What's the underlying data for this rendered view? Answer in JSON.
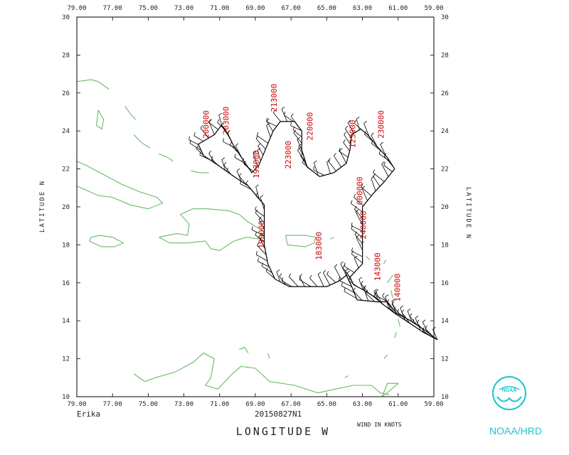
{
  "storm_name": "Erika",
  "flight_id": "20150827N1",
  "x_axis_title": "LONGITUDE   W",
  "y_axis_title": "LATITUDE  N",
  "wind_units": "WIND IN KNOTS",
  "agency": "NOAA/HRD",
  "logo_text": "NOAA",
  "map": {
    "lon_range": [
      -79,
      -59
    ],
    "lat_range": [
      10,
      30
    ],
    "lon_ticks": [
      "79.00",
      "77.00",
      "75.00",
      "73.00",
      "71.00",
      "69.00",
      "67.00",
      "65.00",
      "63.00",
      "61.00",
      "59.00"
    ],
    "lat_ticks": [
      "10",
      "12",
      "14",
      "16",
      "18",
      "20",
      "22",
      "24",
      "26",
      "28",
      "30"
    ],
    "track_color": "#000000",
    "coast_color": "#66bb66",
    "label_color": "#cc0000"
  },
  "track": [
    [
      -58.8,
      13.0
    ],
    [
      -59.6,
      13.4
    ],
    [
      -60.4,
      13.9
    ],
    [
      -61.2,
      14.4
    ],
    [
      -61.9,
      14.9
    ],
    [
      -62.4,
      15.3
    ],
    [
      -62.9,
      15.6
    ],
    [
      -63.5,
      15.9
    ],
    [
      -63.7,
      16.3
    ],
    [
      -63.0,
      17.0
    ],
    [
      -63.0,
      18.0
    ],
    [
      -63.0,
      19.0
    ],
    [
      -63.0,
      20.0
    ],
    [
      -62.4,
      20.7
    ],
    [
      -61.8,
      21.3
    ],
    [
      -61.2,
      22.0
    ],
    [
      -61.6,
      22.6
    ],
    [
      -62.2,
      23.2
    ],
    [
      -62.7,
      23.8
    ],
    [
      -63.1,
      24.1
    ],
    [
      -63.6,
      23.8
    ],
    [
      -63.7,
      23.0
    ],
    [
      -63.9,
      22.3
    ],
    [
      -64.6,
      21.8
    ],
    [
      -65.4,
      21.6
    ],
    [
      -66.1,
      22.1
    ],
    [
      -66.4,
      23.0
    ],
    [
      -66.4,
      24.0
    ],
    [
      -66.8,
      24.5
    ],
    [
      -67.6,
      24.5
    ],
    [
      -68.0,
      24.0
    ],
    [
      -68.4,
      23.1
    ],
    [
      -68.8,
      22.2
    ],
    [
      -69.2,
      21.8
    ],
    [
      -69.7,
      22.5
    ],
    [
      -70.2,
      23.2
    ],
    [
      -70.7,
      24.1
    ],
    [
      -70.9,
      24.3
    ],
    [
      -71.3,
      23.8
    ],
    [
      -72.2,
      23.3
    ],
    [
      -71.9,
      22.7
    ],
    [
      -71.1,
      22.2
    ],
    [
      -70.2,
      21.6
    ],
    [
      -69.4,
      21.1
    ],
    [
      -68.5,
      20.1
    ],
    [
      -68.5,
      19.0
    ],
    [
      -68.5,
      18.0
    ],
    [
      -68.3,
      17.0
    ],
    [
      -67.9,
      16.2
    ],
    [
      -67.1,
      15.8
    ],
    [
      -66.0,
      15.8
    ],
    [
      -65.0,
      15.8
    ],
    [
      -64.3,
      16.1
    ],
    [
      -63.9,
      16.4
    ],
    [
      -63.6,
      15.8
    ],
    [
      -63.3,
      15.1
    ],
    [
      -62.2,
      15.0
    ],
    [
      -61.6,
      15.0
    ],
    [
      -61.1,
      14.4
    ],
    [
      -60.3,
      14.0
    ],
    [
      -59.5,
      13.5
    ],
    [
      -58.8,
      13.0
    ]
  ],
  "time_labels": [
    {
      "text": "200000",
      "lon": -71.6,
      "lat": 23.6
    },
    {
      "text": "203000",
      "lon": -70.5,
      "lat": 23.8
    },
    {
      "text": "213000",
      "lon": -67.8,
      "lat": 25.0
    },
    {
      "text": "220000",
      "lon": -65.8,
      "lat": 23.5
    },
    {
      "text": "223000",
      "lon": -67.0,
      "lat": 22.0
    },
    {
      "text": "193000",
      "lon": -68.8,
      "lat": 21.5
    },
    {
      "text": "230000",
      "lon": -61.8,
      "lat": 23.6
    },
    {
      "text": "123000",
      "lon": -63.4,
      "lat": 23.1
    },
    {
      "text": "000000",
      "lon": -63.0,
      "lat": 20.1
    },
    {
      "text": "190000",
      "lon": -68.5,
      "lat": 17.8
    },
    {
      "text": "183000",
      "lon": -65.3,
      "lat": 17.2
    },
    {
      "text": "240000",
      "lon": -62.8,
      "lat": 18.3
    },
    {
      "text": "143000",
      "lon": -62.0,
      "lat": 16.1
    },
    {
      "text": "140000",
      "lon": -60.9,
      "lat": 15.0
    }
  ],
  "coastlines": [
    [
      [
        -79.0,
        21.1
      ],
      [
        -77.8,
        20.6
      ],
      [
        -77.0,
        20.5
      ],
      [
        -76.0,
        20.1
      ],
      [
        -75.0,
        19.9
      ],
      [
        -74.2,
        20.2
      ],
      [
        -74.5,
        20.5
      ],
      [
        -75.5,
        20.8
      ],
      [
        -76.5,
        21.2
      ],
      [
        -77.5,
        21.7
      ],
      [
        -78.5,
        22.2
      ],
      [
        -79.0,
        22.4
      ]
    ],
    [
      [
        -78.2,
        18.4
      ],
      [
        -77.7,
        18.5
      ],
      [
        -77.0,
        18.4
      ],
      [
        -76.4,
        18.1
      ],
      [
        -76.9,
        17.9
      ],
      [
        -77.6,
        17.9
      ],
      [
        -78.3,
        18.2
      ],
      [
        -78.2,
        18.4
      ]
    ],
    [
      [
        -74.4,
        18.4
      ],
      [
        -73.4,
        18.6
      ],
      [
        -72.8,
        18.5
      ],
      [
        -72.7,
        19.1
      ],
      [
        -73.2,
        19.6
      ],
      [
        -72.5,
        19.9
      ],
      [
        -71.7,
        19.9
      ],
      [
        -70.5,
        19.8
      ],
      [
        -69.9,
        19.6
      ],
      [
        -69.4,
        19.2
      ],
      [
        -68.5,
        18.7
      ],
      [
        -68.7,
        18.3
      ],
      [
        -69.5,
        18.4
      ],
      [
        -70.2,
        18.2
      ],
      [
        -71.0,
        17.7
      ],
      [
        -71.5,
        17.8
      ],
      [
        -71.8,
        18.2
      ],
      [
        -72.8,
        18.1
      ],
      [
        -73.8,
        18.1
      ],
      [
        -74.4,
        18.4
      ]
    ],
    [
      [
        -67.3,
        18.5
      ],
      [
        -66.2,
        18.5
      ],
      [
        -65.6,
        18.4
      ],
      [
        -65.7,
        18.1
      ],
      [
        -66.2,
        17.9
      ],
      [
        -67.2,
        18.0
      ],
      [
        -67.3,
        18.5
      ]
    ],
    [
      [
        -79.0,
        26.6
      ],
      [
        -78.2,
        26.7
      ],
      [
        -77.8,
        26.6
      ],
      [
        -77.2,
        26.2
      ]
    ],
    [
      [
        -77.8,
        25.1
      ],
      [
        -77.5,
        24.6
      ],
      [
        -77.6,
        24.1
      ],
      [
        -77.9,
        24.3
      ],
      [
        -77.8,
        25.1
      ]
    ],
    [
      [
        -76.3,
        25.3
      ],
      [
        -76.0,
        24.9
      ],
      [
        -75.7,
        24.6
      ]
    ],
    [
      [
        -75.8,
        23.8
      ],
      [
        -75.4,
        23.4
      ],
      [
        -74.9,
        23.1
      ]
    ],
    [
      [
        -74.4,
        22.8
      ],
      [
        -73.9,
        22.6
      ],
      [
        -73.6,
        22.4
      ]
    ],
    [
      [
        -72.6,
        21.9
      ],
      [
        -72.1,
        21.8
      ],
      [
        -71.6,
        21.8
      ]
    ],
    [
      [
        -75.8,
        11.2
      ],
      [
        -75.2,
        10.8
      ],
      [
        -74.6,
        11.0
      ],
      [
        -73.5,
        11.3
      ],
      [
        -72.5,
        11.8
      ],
      [
        -71.9,
        12.3
      ],
      [
        -71.3,
        12.0
      ],
      [
        -71.5,
        11.0
      ],
      [
        -71.8,
        10.6
      ],
      [
        -71.1,
        10.4
      ],
      [
        -70.3,
        11.2
      ],
      [
        -69.8,
        11.6
      ],
      [
        -69.0,
        11.5
      ],
      [
        -68.2,
        10.8
      ],
      [
        -66.8,
        10.6
      ],
      [
        -65.5,
        10.2
      ],
      [
        -64.5,
        10.4
      ],
      [
        -63.5,
        10.6
      ],
      [
        -62.5,
        10.6
      ],
      [
        -62.0,
        10.2
      ],
      [
        -61.5,
        10.1
      ]
    ],
    [
      [
        -69.9,
        12.5
      ],
      [
        -69.6,
        12.6
      ],
      [
        -69.4,
        12.3
      ]
    ],
    [
      [
        -68.3,
        12.3
      ],
      [
        -68.2,
        12.0
      ]
    ],
    [
      [
        -64.0,
        11.0
      ],
      [
        -63.8,
        11.1
      ]
    ],
    [
      [
        -61.9,
        10.0
      ],
      [
        -61.5,
        10.3
      ],
      [
        -61.0,
        10.7
      ],
      [
        -61.6,
        10.7
      ],
      [
        -61.9,
        10.0
      ]
    ],
    [
      [
        -61.8,
        12.0
      ],
      [
        -61.6,
        12.2
      ]
    ],
    [
      [
        -61.2,
        13.1
      ],
      [
        -61.1,
        13.4
      ]
    ],
    [
      [
        -60.9,
        13.7
      ],
      [
        -61.0,
        14.1
      ]
    ],
    [
      [
        -61.1,
        14.4
      ],
      [
        -61.2,
        14.8
      ]
    ],
    [
      [
        -61.3,
        15.2
      ],
      [
        -61.4,
        15.6
      ]
    ],
    [
      [
        -61.6,
        16.0
      ],
      [
        -61.3,
        16.4
      ]
    ],
    [
      [
        -61.8,
        17.0
      ],
      [
        -61.7,
        17.2
      ]
    ],
    [
      [
        -62.6,
        17.2
      ],
      [
        -62.8,
        17.4
      ]
    ],
    [
      [
        -63.1,
        18.0
      ],
      [
        -62.9,
        18.2
      ]
    ],
    [
      [
        -64.8,
        18.3
      ],
      [
        -64.6,
        18.4
      ]
    ]
  ]
}
